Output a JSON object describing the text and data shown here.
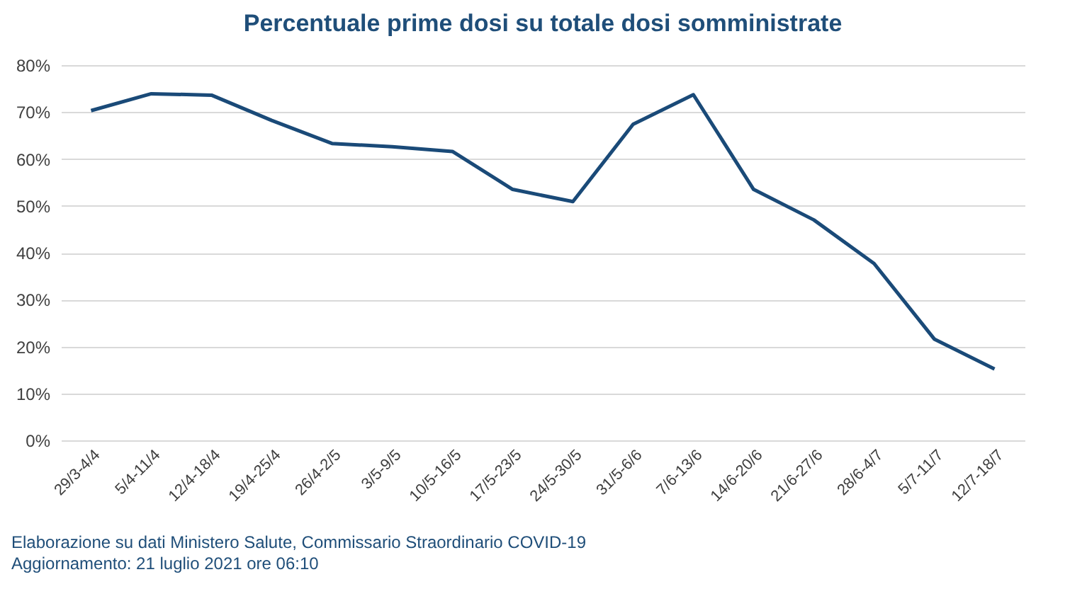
{
  "chart_data": {
    "type": "line",
    "title": "Percentuale prime dosi su totale dosi somministrate",
    "categories": [
      "29/3-4/4",
      "5/4-11/4",
      "12/4-18/4",
      "19/4-25/4",
      "26/4-2/5",
      "3/5-9/5",
      "10/5-16/5",
      "17/5-23/5",
      "24/5-30/5",
      "31/5-6/6",
      "7/6-13/6",
      "14/6-20/6",
      "21/6-27/6",
      "28/6-4/7",
      "5/7-11/7",
      "12/7-18/7"
    ],
    "series": [
      {
        "color": "#1a4a78",
        "values": [
          70.3,
          73.9,
          73.6,
          68.2,
          63.3,
          62.6,
          61.6,
          53.5,
          50.9,
          67.4,
          73.7,
          53.5,
          47.0,
          37.7,
          21.6,
          15.2
        ]
      }
    ],
    "ylim": [
      0,
      80
    ],
    "yticks": [
      {
        "value": 0,
        "label": "0%"
      },
      {
        "value": 10,
        "label": "10%"
      },
      {
        "value": 20,
        "label": "20%"
      },
      {
        "value": 30,
        "label": "30%"
      },
      {
        "value": 40,
        "label": "40%"
      },
      {
        "value": 50,
        "label": "50%"
      },
      {
        "value": 60,
        "label": "60%"
      },
      {
        "value": 70,
        "label": "70%"
      },
      {
        "value": 80,
        "label": "80%"
      }
    ],
    "grid": "y",
    "marker": "none",
    "line_style": "solid",
    "annotations": [
      "Elaborazione su dati Ministero Salute, Commissario Straordinario COVID-19",
      "Aggiornamento: 21 luglio 2021 ore 06:10"
    ]
  }
}
